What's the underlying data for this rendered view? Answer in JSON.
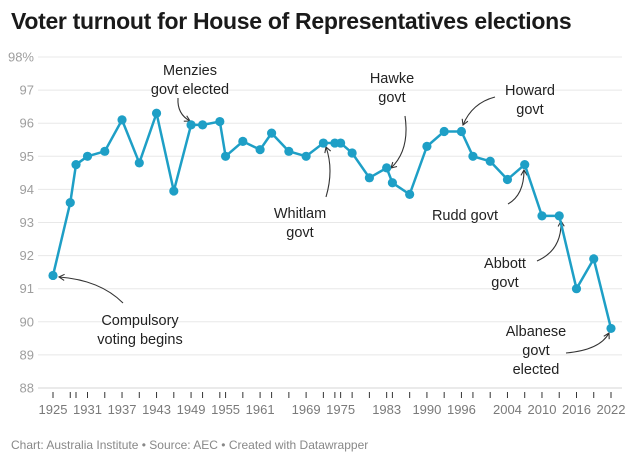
{
  "chart_data": {
    "type": "line",
    "title": "Voter turnout for House of Representatives elections",
    "xlabel": "",
    "ylabel": "",
    "ylim": [
      88,
      98
    ],
    "xlim": [
      1925,
      2022
    ],
    "grid": true,
    "y_ticks": [
      88,
      89,
      90,
      91,
      92,
      93,
      94,
      95,
      96,
      97,
      98
    ],
    "y_tick_labels": [
      "88",
      "89",
      "90",
      "91",
      "92",
      "93",
      "94",
      "95",
      "96",
      "97",
      "98%"
    ],
    "x_tick_labels": [
      "1925",
      "1931",
      "1937",
      "1943",
      "1949",
      "1955",
      "1961",
      "1969",
      "1975",
      "1983",
      "1990",
      "1996",
      "2004",
      "2010",
      "2016",
      "2022"
    ],
    "series": [
      {
        "name": "Voter turnout",
        "color": "#1e9fc6",
        "x": [
          1925,
          1928,
          1929,
          1931,
          1934,
          1937,
          1940,
          1943,
          1946,
          1949,
          1951,
          1954,
          1955,
          1958,
          1961,
          1963,
          1966,
          1969,
          1972,
          1974,
          1975,
          1977,
          1980,
          1983,
          1984,
          1987,
          1990,
          1993,
          1996,
          1998,
          2001,
          2004,
          2007,
          2010,
          2013,
          2016,
          2019,
          2022
        ],
        "values": [
          91.4,
          93.6,
          94.75,
          95.0,
          95.15,
          96.1,
          94.8,
          96.3,
          93.95,
          95.95,
          95.95,
          96.05,
          95.0,
          95.45,
          95.2,
          95.7,
          95.15,
          95.0,
          95.4,
          95.4,
          95.4,
          95.1,
          94.35,
          94.65,
          94.2,
          93.85,
          95.3,
          95.75,
          95.75,
          95.0,
          94.85,
          94.3,
          94.75,
          93.2,
          93.2,
          91.0,
          91.9,
          89.8
        ]
      }
    ],
    "annotations": [
      {
        "lines": [
          "Compulsory",
          "voting begins"
        ],
        "target_year": 1925
      },
      {
        "lines": [
          "Menzies",
          "govt elected"
        ],
        "target_year": 1949
      },
      {
        "lines": [
          "Whitlam",
          "govt"
        ],
        "target_year": 1972
      },
      {
        "lines": [
          "Hawke",
          "govt"
        ],
        "target_year": 1983
      },
      {
        "lines": [
          "Howard",
          "govt"
        ],
        "target_year": 1996
      },
      {
        "lines": [
          "Rudd govt"
        ],
        "target_year": 2007
      },
      {
        "lines": [
          "Abbott",
          "govt"
        ],
        "target_year": 2013
      },
      {
        "lines": [
          "Albanese",
          "govt",
          "elected"
        ],
        "target_year": 2022
      }
    ]
  },
  "footer": "Chart: Australia Institute • Source: AEC • Created with Datawrapper"
}
